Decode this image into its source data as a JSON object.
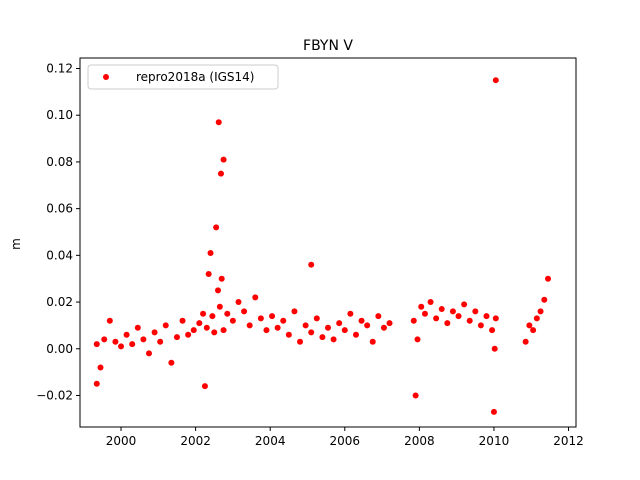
{
  "chart_data": {
    "type": "scatter",
    "title": "FBYN V",
    "xlabel": "",
    "ylabel": "m",
    "xlim": [
      1998.9,
      2012.2
    ],
    "ylim": [
      -0.0335,
      0.1245
    ],
    "xticks": [
      2000,
      2002,
      2004,
      2006,
      2008,
      2010,
      2012
    ],
    "xtick_labels": [
      "2000",
      "2002",
      "2004",
      "2006",
      "2008",
      "2010",
      "2012"
    ],
    "yticks": [
      -0.02,
      0.0,
      0.02,
      0.04,
      0.06,
      0.08,
      0.1,
      0.12
    ],
    "ytick_labels": [
      "−0.02",
      "0.00",
      "0.02",
      "0.04",
      "0.06",
      "0.08",
      "0.10",
      "0.12"
    ],
    "grid": false,
    "legend": {
      "position": "top-left",
      "entries": [
        "repro2018a (IGS14)"
      ]
    },
    "series": [
      {
        "name": "repro2018a (IGS14)",
        "color": "#ff0000",
        "marker": "circle",
        "x": [
          1999.35,
          1999.45,
          1999.55,
          1999.7,
          1999.85,
          2000.0,
          2000.15,
          2000.3,
          2000.45,
          2000.6,
          2000.75,
          2000.9,
          2001.05,
          2001.2,
          2001.35,
          2001.5,
          2001.65,
          2001.8,
          2001.95,
          2002.1,
          2002.2,
          2002.3,
          2002.35,
          2002.4,
          2002.45,
          2002.5,
          2002.55,
          2002.6,
          2002.65,
          2002.7,
          2002.75,
          2002.85,
          2003.0,
          2003.15,
          2003.3,
          2003.45,
          2003.6,
          2003.75,
          2003.9,
          2004.05,
          2004.2,
          2004.35,
          2004.5,
          2004.65,
          2004.8,
          2004.95,
          2005.1,
          2005.25,
          2005.4,
          2005.55,
          2005.7,
          2005.85,
          2006.0,
          2006.15,
          2006.3,
          2006.45,
          2006.6,
          2006.75,
          2006.9,
          2007.05,
          2007.2,
          2007.85,
          2007.95,
          2008.05,
          2008.15,
          2008.3,
          2008.45,
          2008.6,
          2008.75,
          2008.9,
          2009.05,
          2009.2,
          2009.35,
          2009.5,
          2009.65,
          2009.8,
          2009.95,
          2010.05,
          2010.05,
          2010.0,
          2010.02,
          2010.85,
          2010.95,
          2011.05,
          2011.15,
          2011.25,
          2011.35,
          2011.45,
          2002.62,
          2002.68,
          2002.75,
          2005.1,
          1999.35,
          2007.9,
          2002.25
        ],
        "y": [
          0.002,
          -0.008,
          0.004,
          0.012,
          0.003,
          0.001,
          0.006,
          0.002,
          0.009,
          0.004,
          -0.002,
          0.007,
          0.003,
          0.01,
          -0.006,
          0.005,
          0.012,
          0.006,
          0.008,
          0.011,
          0.015,
          0.009,
          0.032,
          0.041,
          0.014,
          0.007,
          0.052,
          0.025,
          0.018,
          0.03,
          0.008,
          0.015,
          0.012,
          0.02,
          0.016,
          0.01,
          0.022,
          0.013,
          0.008,
          0.014,
          0.009,
          0.012,
          0.006,
          0.016,
          0.003,
          0.01,
          0.007,
          0.013,
          0.005,
          0.009,
          0.004,
          0.011,
          0.008,
          0.015,
          0.006,
          0.012,
          0.01,
          0.003,
          0.014,
          0.009,
          0.011,
          0.012,
          0.004,
          0.018,
          0.015,
          0.02,
          0.013,
          0.017,
          0.011,
          0.016,
          0.014,
          0.019,
          0.012,
          0.016,
          0.01,
          0.014,
          0.008,
          0.013,
          0.115,
          -0.027,
          0.0,
          0.003,
          0.01,
          0.008,
          0.013,
          0.016,
          0.021,
          0.03,
          0.097,
          0.075,
          0.081,
          0.036,
          -0.015,
          -0.02,
          -0.016
        ]
      }
    ]
  }
}
